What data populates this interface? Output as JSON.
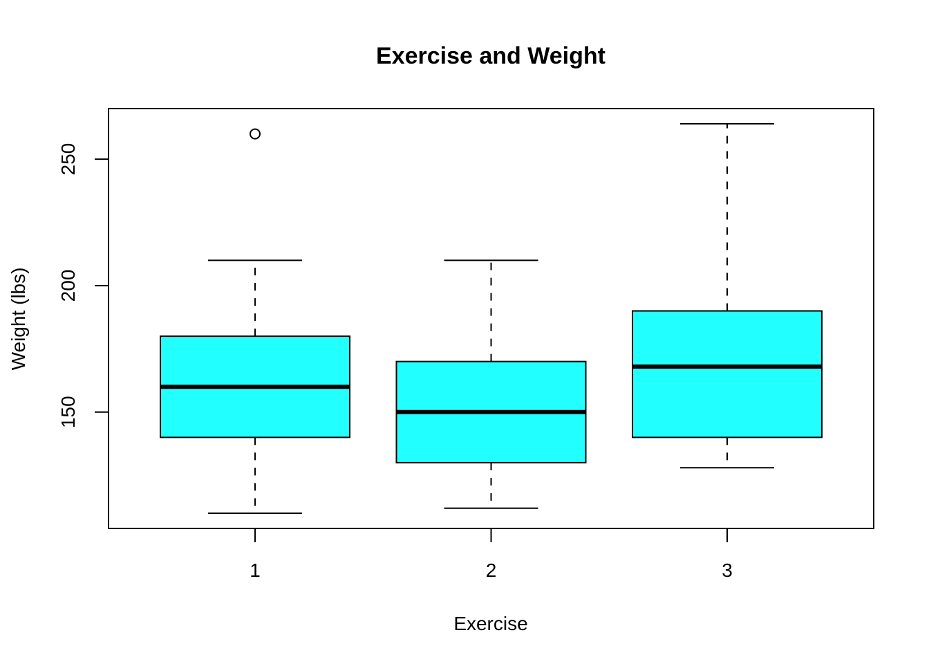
{
  "chart_data": {
    "type": "box",
    "title": "Exercise and Weight",
    "xlabel": "Exercise",
    "ylabel": "Weight (lbs)",
    "categories": [
      "1",
      "2",
      "3"
    ],
    "ylim": [
      104,
      270
    ],
    "yticks": [
      "150",
      "200",
      "250"
    ],
    "box_fill": "#22FFFF",
    "grid": false,
    "legend": "none",
    "boxes": [
      {
        "category": "1",
        "whisker_low": 110,
        "q1": 140,
        "median": 160,
        "q3": 180,
        "whisker_high": 210,
        "outliers": [
          260
        ]
      },
      {
        "category": "2",
        "whisker_low": 112,
        "q1": 130,
        "median": 150,
        "q3": 170,
        "whisker_high": 210,
        "outliers": []
      },
      {
        "category": "3",
        "whisker_low": 128,
        "q1": 140,
        "median": 168,
        "q3": 190,
        "whisker_high": 264,
        "outliers": []
      }
    ]
  }
}
